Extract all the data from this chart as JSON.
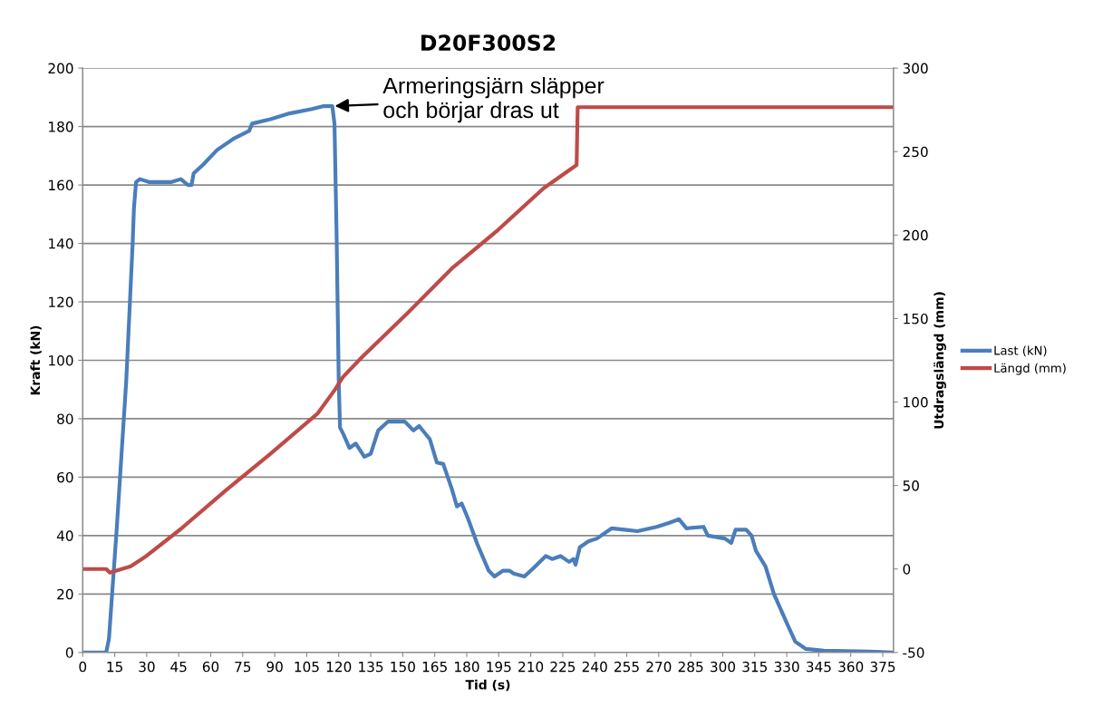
{
  "chart_data": {
    "type": "line",
    "title": "D20F300S2",
    "xlabel": "Tid (s)",
    "ylabel": "Kraft (kN)",
    "y2label": "Utdragslängd (mm)",
    "xlim": [
      0,
      380
    ],
    "xticks": [
      0,
      15,
      30,
      45,
      60,
      75,
      90,
      105,
      120,
      135,
      150,
      165,
      180,
      195,
      210,
      225,
      240,
      255,
      270,
      285,
      300,
      315,
      330,
      345,
      360,
      375
    ],
    "ylim": [
      0,
      200
    ],
    "yticks": [
      0,
      20,
      40,
      60,
      80,
      100,
      120,
      140,
      160,
      180,
      200
    ],
    "y2lim": [
      -50,
      300
    ],
    "y2ticks": [
      -50,
      0,
      50,
      100,
      150,
      200,
      250,
      300
    ],
    "grid": "y",
    "legend": "right",
    "marker": "none",
    "line_style": "solid",
    "annotations": [
      {
        "text": "Armeringsjärn släpper\noch börjar dras ut",
        "x": 117,
        "y": 187
      }
    ],
    "series": [
      {
        "name": "Last (kN)",
        "color": "#4a7ebb",
        "x": [
          0,
          11,
          12.3,
          16,
          20.4,
          23.4,
          24,
          25,
          26.8,
          31,
          35,
          41.6,
          46,
          49.3,
          51,
          52,
          56.5,
          63,
          71,
          78,
          79.4,
          88,
          97,
          107.5,
          113,
          117,
          118,
          119,
          120,
          120.6,
          122.3,
          125,
          128,
          132,
          135,
          138.5,
          143,
          148,
          151,
          155,
          157.7,
          162.7,
          166,
          169,
          173,
          175.4,
          177.6,
          180.5,
          185,
          190.3,
          193,
          197,
          200,
          202,
          207,
          211.5,
          217,
          220,
          224,
          228,
          230,
          231,
          233,
          237,
          241,
          248,
          254,
          260,
          269,
          275,
          279.5,
          283,
          291,
          293,
          301,
          304,
          306,
          311,
          313.5,
          315.6,
          320,
          324,
          330.5,
          334,
          339,
          347.5,
          369,
          380
        ],
        "values": [
          0,
          0,
          4.7,
          43,
          93,
          140,
          152,
          161,
          162,
          161,
          161,
          161,
          162,
          160,
          160,
          164,
          167,
          172,
          176,
          178.5,
          181,
          182.5,
          184.5,
          186,
          187,
          187,
          181,
          143,
          93,
          77,
          74.5,
          70,
          71.5,
          67,
          68,
          76,
          79,
          79,
          79,
          76,
          77.5,
          73,
          65,
          64.5,
          56,
          50,
          51,
          46,
          37,
          28,
          26,
          28,
          28,
          27,
          26,
          29,
          33,
          32,
          33,
          31,
          32,
          30,
          36,
          38,
          39,
          42.5,
          42,
          41.5,
          43,
          44.4,
          45.6,
          42.5,
          43,
          40,
          39,
          37.5,
          42,
          42,
          40,
          34.7,
          29.5,
          20,
          9.3,
          3.7,
          1.2,
          0.6,
          0.3,
          0
        ]
      },
      {
        "name": "Längd (mm)",
        "color": "#be4b48",
        "axis": "y2",
        "x": [
          0,
          11,
          12.7,
          22.5,
          29,
          46,
          67,
          88,
          110,
          118,
          122,
          131,
          152,
          173,
          194.6,
          216,
          231.5,
          232,
          380
        ],
        "values": [
          0,
          0,
          -2.2,
          1.6,
          7,
          24,
          47,
          69,
          93,
          107,
          115,
          127,
          153,
          180,
          203,
          228,
          242,
          276.6,
          276.6
        ]
      }
    ]
  }
}
